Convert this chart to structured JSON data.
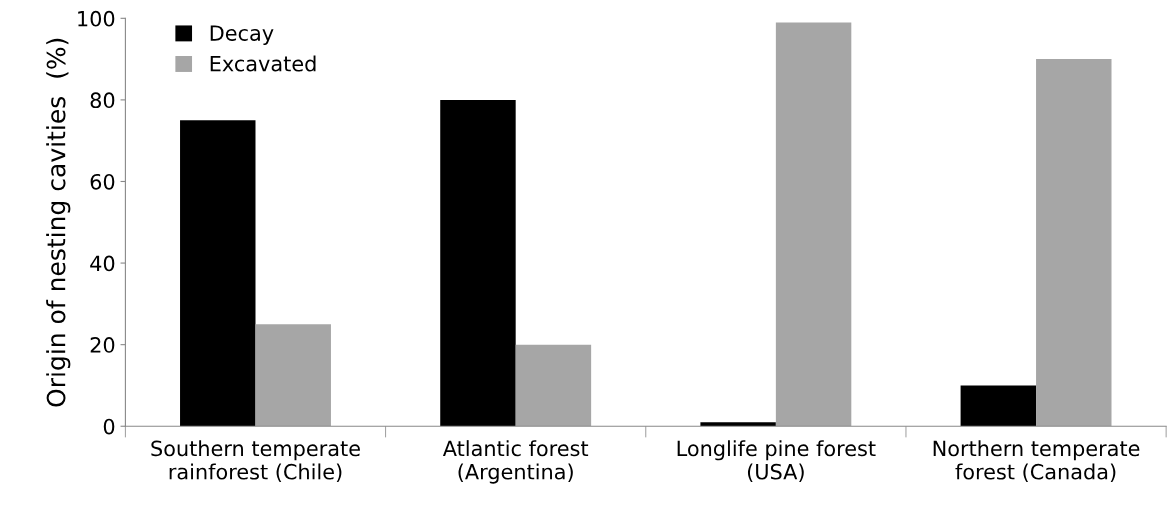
{
  "chart_data": {
    "type": "bar",
    "ylabel": "Origin of nesting cavities  (%)",
    "categories": [
      "Southern temperate\nrainforest (Chile)",
      "Atlantic forest\n(Argentina)",
      "Longlife pine forest\n(USA)",
      "Northern temperate\nforest (Canada)"
    ],
    "series": [
      {
        "name": "Decay",
        "color": "#000000",
        "values": [
          75,
          80,
          1,
          10
        ]
      },
      {
        "name": "Excavated",
        "color": "#a6a6a6",
        "values": [
          25,
          20,
          99,
          90
        ]
      }
    ],
    "ylim": [
      0,
      100
    ],
    "yticks": [
      0,
      20,
      40,
      60,
      80,
      100
    ],
    "grid": false,
    "legend": "top left"
  }
}
